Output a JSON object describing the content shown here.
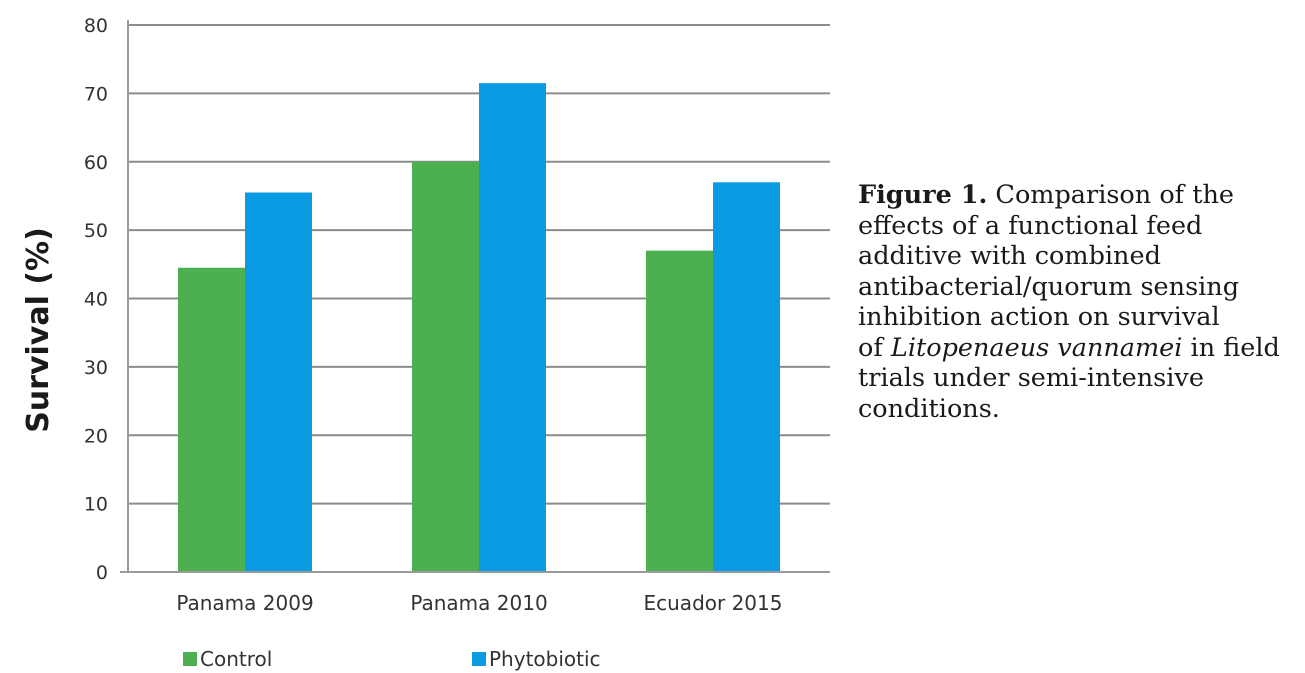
{
  "chart_data": {
    "type": "bar",
    "categories": [
      "Panama 2009",
      "Panama 2010",
      "Ecuador 2015"
    ],
    "series": [
      {
        "name": "Control",
        "values": [
          44.5,
          60,
          47
        ],
        "color": "#4caf50"
      },
      {
        "name": "Phytobiotic",
        "values": [
          55.5,
          71.5,
          57
        ],
        "color": "#0a9be3"
      }
    ],
    "ylabel": "Survival (%)",
    "xlabel": "",
    "ylim": [
      0,
      80
    ],
    "yticks": [
      0,
      10,
      20,
      30,
      40,
      50,
      60,
      70,
      80
    ],
    "grid": true,
    "legend_position": "bottom"
  },
  "caption": {
    "figure_label": "Figure 1.",
    "line1_rest": " Comparison of the",
    "line2": "effects of a functional feed",
    "line3": "additive with combined",
    "line4": "antibacterial/quorum sensing",
    "line5": "inhibition action on survival",
    "line6_pre": "of ",
    "species": "Litopenaeus vannamei",
    "line6_post": " in field",
    "line7": "trials under semi-intensive",
    "line8": "conditions."
  }
}
